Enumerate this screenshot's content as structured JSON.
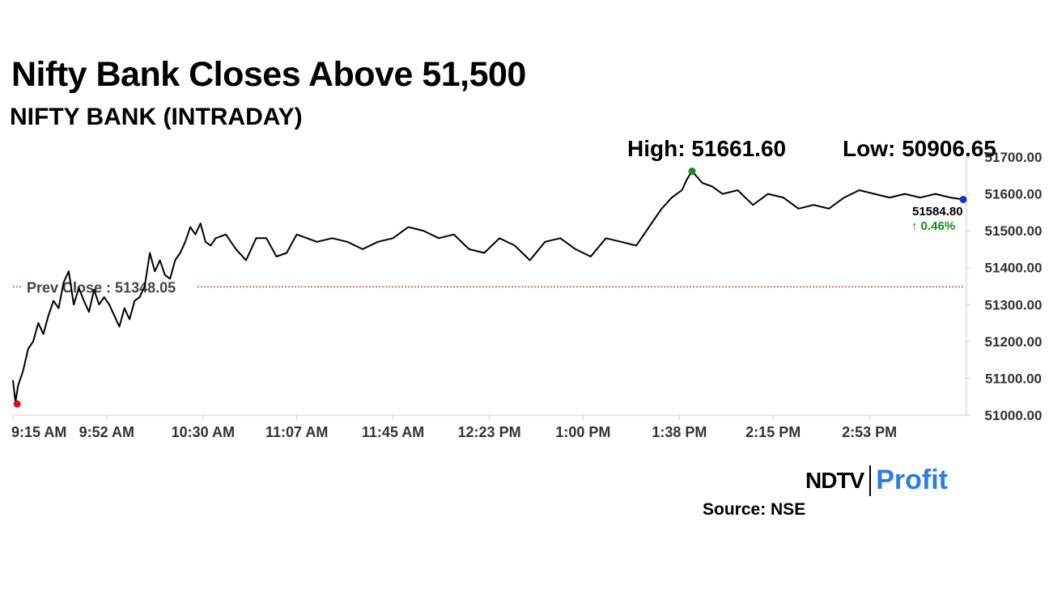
{
  "header": {
    "title": "Nifty Bank Closes Above 51,500",
    "subtitle": "NIFTY BANK (INTRADAY)",
    "high_label": "High: 51661.60",
    "low_label": "Low: 50906.65"
  },
  "footer": {
    "logo_ndtv": "NDTV",
    "logo_profit": "Profit",
    "source": "Source: NSE"
  },
  "colors": {
    "line": "#000000",
    "prev_close_line": "#cc0000",
    "low_marker": "#e0101a",
    "high_marker": "#1a8a1a",
    "last_marker": "#1c2ec8",
    "change_positive": "#1a8a1a",
    "profit_brand": "#2a7de1"
  },
  "chart_data": {
    "type": "line",
    "title": "NIFTY BANK (INTRADAY)",
    "ylim": [
      51000,
      51700
    ],
    "y_ticks": [
      "51000.00",
      "51100.00",
      "51200.00",
      "51300.00",
      "51400.00",
      "51500.00",
      "51600.00",
      "51700.00"
    ],
    "y_tick_values": [
      51000,
      51100,
      51200,
      51300,
      51400,
      51500,
      51600,
      51700
    ],
    "x_ticks": [
      "9:15 AM",
      "9:52 AM",
      "10:30 AM",
      "11:07 AM",
      "11:45 AM",
      "12:23 PM",
      "1:00 PM",
      "1:38 PM",
      "2:15 PM",
      "2:53 PM"
    ],
    "x_tick_minutes": [
      0,
      37,
      75,
      112,
      150,
      188,
      225,
      263,
      300,
      338
    ],
    "x_range_minutes": [
      0,
      375
    ],
    "prev_close": 51348.05,
    "prev_close_label": "Prev Close : 51348.05",
    "last_price": "51584.80",
    "change_text": "↑ 0.46%",
    "grid": false,
    "series": [
      {
        "x_minutes": [
          0,
          1,
          2,
          4,
          6,
          8,
          10,
          12,
          14,
          16,
          18,
          20,
          22,
          24,
          26,
          28,
          30,
          32,
          34,
          36,
          38,
          40,
          42,
          44,
          46,
          48,
          50,
          52,
          54,
          56,
          58,
          60,
          62,
          64,
          66,
          68,
          70,
          72,
          74,
          76,
          78,
          80,
          84,
          88,
          92,
          96,
          100,
          104,
          108,
          112,
          116,
          120,
          126,
          132,
          138,
          144,
          150,
          156,
          162,
          168,
          174,
          180,
          186,
          192,
          198,
          204,
          210,
          216,
          222,
          228,
          234,
          240,
          246,
          252,
          256,
          260,
          264,
          266,
          268,
          272,
          276,
          280,
          286,
          292,
          298,
          304,
          310,
          316,
          322,
          328,
          334,
          340,
          346,
          352,
          358,
          364,
          370,
          375
        ],
        "values": [
          51095,
          51035,
          51080,
          51120,
          51180,
          51200,
          51250,
          51220,
          51270,
          51310,
          51290,
          51360,
          51390,
          51300,
          51345,
          51310,
          51280,
          51340,
          51300,
          51320,
          51300,
          51270,
          51240,
          51290,
          51260,
          51310,
          51320,
          51350,
          51440,
          51390,
          51420,
          51380,
          51370,
          51420,
          51440,
          51470,
          51510,
          51490,
          51520,
          51470,
          51460,
          51480,
          51490,
          51450,
          51420,
          51480,
          51480,
          51430,
          51440,
          51490,
          51480,
          51470,
          51480,
          51470,
          51450,
          51470,
          51480,
          51510,
          51500,
          51480,
          51490,
          51450,
          51440,
          51480,
          51460,
          51420,
          51470,
          51480,
          51450,
          51430,
          51480,
          51470,
          51460,
          51520,
          51560,
          51590,
          51610,
          51640,
          51661.6,
          51630,
          51620,
          51600,
          51610,
          51570,
          51600,
          51590,
          51560,
          51570,
          51560,
          51590,
          51610,
          51600,
          51590,
          51600,
          51590,
          51600,
          51590,
          51584.8
        ]
      }
    ]
  }
}
